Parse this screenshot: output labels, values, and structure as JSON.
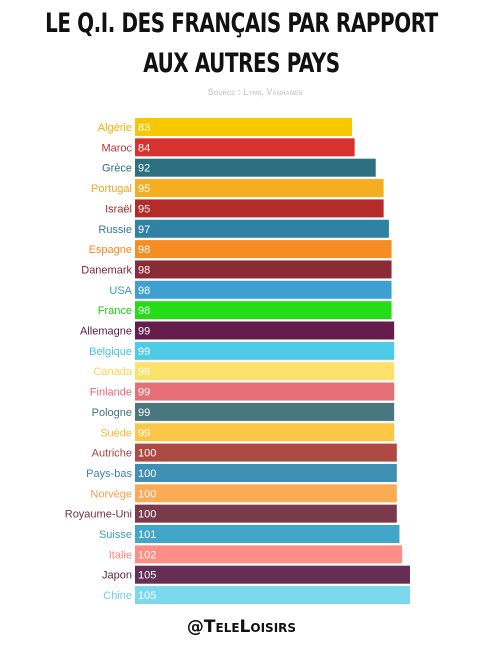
{
  "title": {
    "line1": "LE Q.I. DES FRANÇAIS PAR RAPPORT",
    "line2": "AUX AUTRES PAYS",
    "source": "Source : Lynn, Vanhanen"
  },
  "footer": "@TeleLoisirs",
  "chart_data": {
    "type": "bar",
    "orientation": "horizontal",
    "title": "LE Q.I. DES FRANÇAIS PAR RAPPORT AUX AUTRES PAYS",
    "categories": [
      "Algérie",
      "Maroc",
      "Grèce",
      "Portugal",
      "Israël",
      "Russie",
      "Espagne",
      "Danemark",
      "USA",
      "France",
      "Allemagne",
      "Belgique",
      "Canada",
      "Finlande",
      "Pologne",
      "Suède",
      "Autriche",
      "Pays-bas",
      "Norvège",
      "Royaume-Uni",
      "Suisse",
      "Italie",
      "Japon",
      "Chine"
    ],
    "values": [
      83,
      84,
      92,
      95,
      95,
      97,
      98,
      98,
      98,
      98,
      99,
      99,
      99,
      99,
      99,
      99,
      100,
      100,
      100,
      100,
      101,
      102,
      105,
      105
    ],
    "colors": [
      "#f7c800",
      "#d8312e",
      "#2c7082",
      "#f5ae1f",
      "#b52b2a",
      "#2f82a3",
      "#f58d22",
      "#8a2b35",
      "#3da0d0",
      "#23dd16",
      "#651e4c",
      "#4dcbe7",
      "#fbe06a",
      "#e57075",
      "#48777f",
      "#fcc745",
      "#ad4a43",
      "#3e8fb3",
      "#f9ab55",
      "#7a3a4b",
      "#42a6c9",
      "#fd8e85",
      "#662d55",
      "#7cd8ec"
    ],
    "label_colors": [
      "#f2b400",
      "#c0322f",
      "#2c6d7f",
      "#f1a51c",
      "#a82826",
      "#2e7a9a",
      "#f08a1f",
      "#7d2732",
      "#3a95c4",
      "#1fcc12",
      "#5a1b44",
      "#45c0e0",
      "#f8d74a",
      "#df6a70",
      "#43727b",
      "#f7b938",
      "#a3443e",
      "#3a87aa",
      "#f5a049",
      "#713447",
      "#3e9dc0",
      "#f9847c",
      "#5d2750",
      "#6fcde5"
    ]
  }
}
